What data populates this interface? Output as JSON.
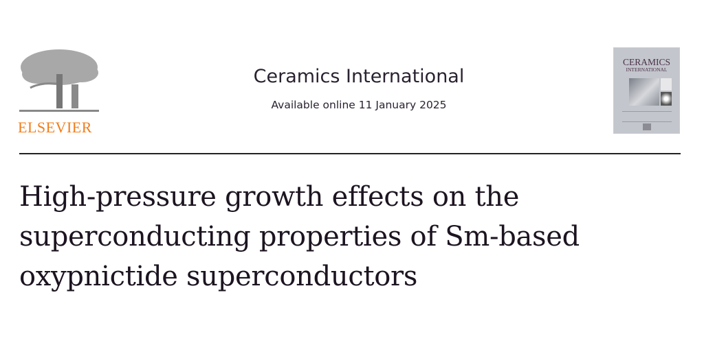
{
  "publisher": {
    "logo_text": "ELSEVIER",
    "brand_color": "#f07d1a"
  },
  "journal": {
    "name": "Ceramics International",
    "availability": "Available online 11 January 2025",
    "cover": {
      "title_line1": "CERAMICS",
      "title_line2": "INTERNATIONAL"
    }
  },
  "article": {
    "title": "High-pressure growth effects on the superconducting properties of Sm-based oxypnictide superconductors"
  }
}
